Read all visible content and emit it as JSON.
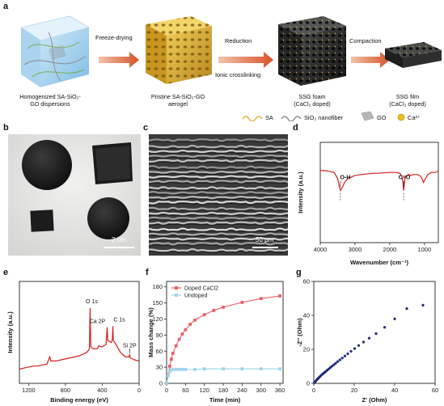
{
  "panel_labels": [
    "a",
    "b",
    "c",
    "d",
    "e",
    "f",
    "g"
  ],
  "panel_a": {
    "stages": [
      {
        "caption_line1": "Homogenized SA-SiO₂-",
        "caption_line2": "GO dispersions"
      },
      {
        "caption_line1": "Pristine SA-SiO₂-GO",
        "caption_line2": "aerogel"
      },
      {
        "caption_line1": "SSG foam",
        "caption_line2": "(CaCl₂ doped)"
      },
      {
        "caption_line1": "SSG film",
        "caption_line2": "(CaCl₂ doped)"
      }
    ],
    "arrows": [
      {
        "label": "Freeze-drying",
        "label2": ""
      },
      {
        "label": "Reduction",
        "label2": "Ionic crosslinking"
      },
      {
        "label": "Compaction",
        "label2": ""
      }
    ],
    "legend": [
      {
        "label": "SA",
        "color": "#e0b43a"
      },
      {
        "label": "SiO₂ nanofiber",
        "color": "#8a8a8a"
      },
      {
        "label": "GO",
        "color": "#9a9a9a"
      },
      {
        "label": "Ca²⁺",
        "color": "#e8c020"
      }
    ]
  },
  "panel_b": {
    "scale_bar": "2 cm"
  },
  "panel_c": {
    "scale_bar": "50 μm"
  },
  "chart_data": [
    {
      "panel": "d",
      "type": "line",
      "xlabel": "Wavenumber (cm⁻¹)",
      "ylabel": "Intensity (a.u.)",
      "xlim": [
        4000,
        600
      ],
      "xticks": [
        4000,
        3000,
        2000,
        1000
      ],
      "color": "#d62020",
      "annotations": [
        {
          "text": "O-H",
          "x": 3420
        },
        {
          "text": "C=O",
          "x": 1600
        }
      ],
      "x": [
        4000,
        3800,
        3600,
        3500,
        3450,
        3420,
        3380,
        3300,
        3200,
        3000,
        2800,
        2500,
        2200,
        2000,
        1800,
        1700,
        1650,
        1620,
        1600,
        1580,
        1550,
        1450,
        1400,
        1300,
        1200,
        1100,
        1050,
        1030,
        1000,
        900,
        800,
        700,
        600
      ],
      "y": [
        0.72,
        0.715,
        0.7,
        0.64,
        0.56,
        0.52,
        0.54,
        0.6,
        0.64,
        0.67,
        0.68,
        0.69,
        0.695,
        0.7,
        0.7,
        0.69,
        0.66,
        0.6,
        0.52,
        0.58,
        0.66,
        0.68,
        0.67,
        0.68,
        0.68,
        0.66,
        0.62,
        0.6,
        0.62,
        0.68,
        0.7,
        0.7,
        0.71
      ]
    },
    {
      "panel": "e",
      "type": "line",
      "xlabel": "Binding energy (eV)",
      "ylabel": "Intensity (a.u.)",
      "xlim": [
        1300,
        0
      ],
      "xticks": [
        1200,
        800,
        400,
        0
      ],
      "color": "#d62020",
      "annotations": [
        {
          "text": "O 1s",
          "x": 532
        },
        {
          "text": "Ca 2P",
          "x": 347
        },
        {
          "text": "C 1s",
          "x": 285
        },
        {
          "text": "Si 2P",
          "x": 103
        }
      ],
      "x": [
        1300,
        1250,
        1200,
        1150,
        1100,
        1050,
        1000,
        980,
        970,
        960,
        900,
        850,
        800,
        750,
        700,
        650,
        600,
        560,
        540,
        532,
        525,
        500,
        450,
        440,
        420,
        400,
        360,
        350,
        347,
        340,
        300,
        290,
        285,
        280,
        250,
        200,
        150,
        110,
        103,
        95,
        50,
        0
      ],
      "y": [
        0.14,
        0.15,
        0.16,
        0.17,
        0.17,
        0.18,
        0.19,
        0.24,
        0.26,
        0.22,
        0.22,
        0.23,
        0.24,
        0.25,
        0.26,
        0.27,
        0.29,
        0.31,
        0.34,
        0.74,
        0.36,
        0.34,
        0.34,
        0.37,
        0.36,
        0.36,
        0.38,
        0.5,
        0.55,
        0.42,
        0.4,
        0.44,
        0.56,
        0.42,
        0.38,
        0.3,
        0.26,
        0.26,
        0.28,
        0.25,
        0.23,
        0.22
      ]
    },
    {
      "panel": "f",
      "type": "line",
      "xlabel": "Time (min)",
      "ylabel": "Mass change (%)",
      "xlim": [
        0,
        370
      ],
      "ylim": [
        0,
        190
      ],
      "xticks": [
        0,
        60,
        120,
        180,
        240,
        300,
        360
      ],
      "yticks": [
        0,
        30,
        60,
        90,
        120,
        150,
        180
      ],
      "legend_position": "top-left",
      "series": [
        {
          "name": "Doped CaCl2",
          "color": "#e8606a",
          "x": [
            0,
            5,
            10,
            15,
            20,
            30,
            40,
            50,
            60,
            75,
            90,
            120,
            150,
            180,
            240,
            300,
            360
          ],
          "y": [
            0,
            15,
            32,
            45,
            56,
            70,
            82,
            92,
            100,
            110,
            118,
            128,
            136,
            142,
            151,
            158,
            163
          ]
        },
        {
          "name": "Undoped",
          "color": "#9fd4ec",
          "x": [
            0,
            5,
            10,
            15,
            20,
            30,
            40,
            50,
            60,
            90,
            120,
            180,
            240,
            300,
            360
          ],
          "y": [
            0,
            14,
            22,
            25,
            26,
            26,
            26,
            26,
            26,
            26,
            27,
            27,
            27,
            27,
            27
          ]
        }
      ]
    },
    {
      "panel": "g",
      "type": "scatter",
      "xlabel": "Z' (Ohm)",
      "ylabel": "-Z'' (Ohm)",
      "xlim": [
        0,
        60
      ],
      "ylim": [
        0,
        60
      ],
      "xticks": [
        0,
        20,
        40,
        60
      ],
      "yticks": [
        0,
        20,
        40,
        60
      ],
      "color": "#1f2a7a",
      "x": [
        0.3,
        0.6,
        1,
        1.4,
        1.8,
        2.2,
        2.7,
        3.2,
        3.7,
        4.2,
        4.8,
        5.4,
        6.0,
        6.7,
        7.4,
        8.2,
        9.0,
        9.9,
        10.8,
        11.8,
        12.9,
        14.1,
        15.4,
        16.8,
        18.4,
        20.2,
        22.2,
        24.6,
        27.4,
        30.8,
        35,
        40,
        46,
        54
      ],
      "y": [
        0.4,
        0.9,
        1.4,
        2.0,
        2.5,
        3.0,
        3.6,
        4.2,
        4.8,
        5.3,
        5.9,
        6.5,
        7.1,
        7.8,
        8.5,
        9.3,
        10.1,
        10.9,
        11.8,
        12.8,
        13.8,
        14.9,
        16.1,
        17.4,
        18.9,
        20.5,
        22.3,
        24.3,
        26.6,
        29.3,
        33,
        38,
        44,
        46
      ]
    }
  ]
}
